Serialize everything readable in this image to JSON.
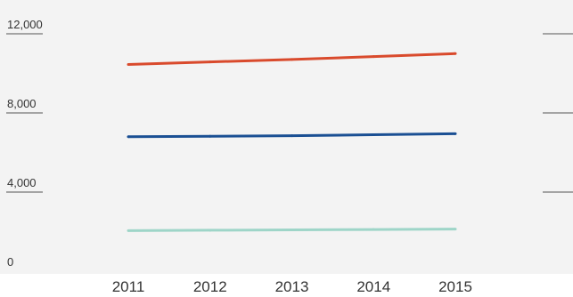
{
  "chart_data": {
    "type": "line",
    "x": [
      "2011",
      "2012",
      "2013",
      "2014",
      "2015"
    ],
    "ylim": [
      0,
      12000
    ],
    "y_ticks": [
      {
        "value": 0,
        "label": "0"
      },
      {
        "value": 4000,
        "label": "4,000"
      },
      {
        "value": 8000,
        "label": "8,000"
      },
      {
        "value": 12000,
        "label": "12,000"
      }
    ],
    "series": [
      {
        "color": "#d94a2c",
        "values": [
          10450,
          10580,
          10700,
          10850,
          11000
        ]
      },
      {
        "color": "#1a4f93",
        "values": [
          6800,
          6820,
          6850,
          6900,
          6950
        ]
      },
      {
        "color": "#9ed5c8",
        "values": [
          2050,
          2070,
          2090,
          2110,
          2130
        ]
      }
    ],
    "title": "",
    "xlabel": "",
    "ylabel": "",
    "grid": false,
    "legend": "none",
    "background_color": "#f3f3f3",
    "tick_mark_color": "#555555"
  }
}
